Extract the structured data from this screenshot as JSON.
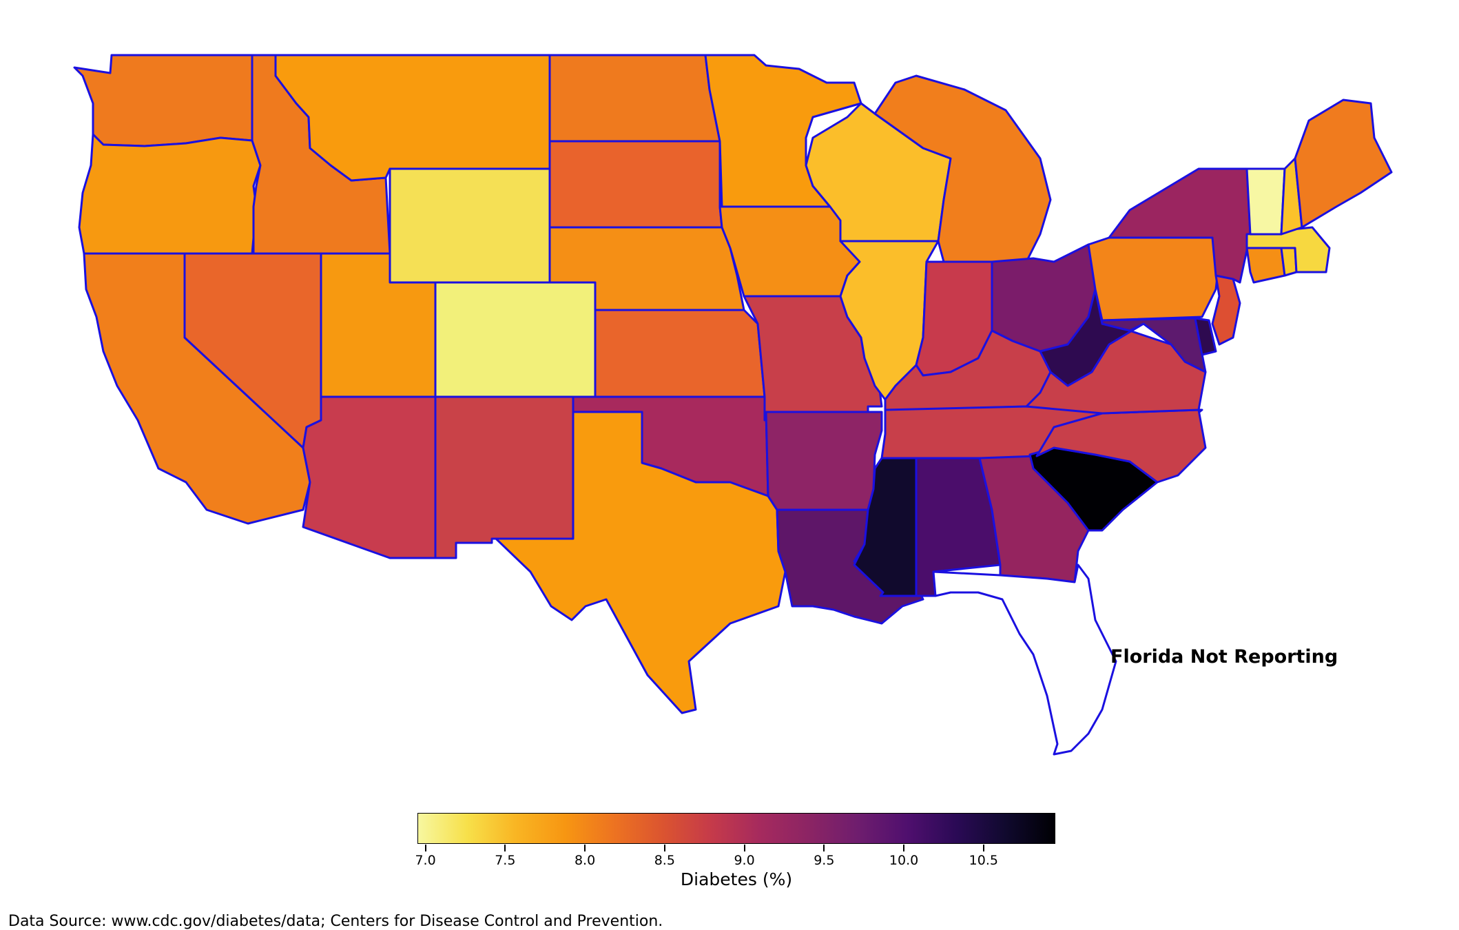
{
  "chart_data": {
    "type": "choropleth",
    "variable": "Diabetes (%)",
    "colormap": "plasma/inferno-like (light yellow low, black high)",
    "colorbar": {
      "label": "Diabetes (%)",
      "range": [
        6.95,
        10.95
      ],
      "ticks": [
        "7.0",
        "7.5",
        "8.0",
        "8.5",
        "9.0",
        "9.5",
        "10.0",
        "10.5"
      ],
      "stops": [
        "#f7f7a0",
        "#f7e04a",
        "#f9b523",
        "#f79612",
        "#ed7321",
        "#db5430",
        "#c53a4a",
        "#a52a5e",
        "#8b2464",
        "#6e1d6e",
        "#4f0f6e",
        "#2a0a55",
        "#10092e",
        "#000004"
      ]
    },
    "states": [
      {
        "name": "Washington",
        "value": 8.3,
        "color": "#ef7a1e"
      },
      {
        "name": "Oregon",
        "value": 8.0,
        "color": "#f79910"
      },
      {
        "name": "California",
        "value": 8.2,
        "color": "#f17f1b"
      },
      {
        "name": "Idaho",
        "value": 8.3,
        "color": "#ef7a1e"
      },
      {
        "name": "Nevada",
        "value": 8.5,
        "color": "#e9662a"
      },
      {
        "name": "Montana",
        "value": 7.9,
        "color": "#f99b0d"
      },
      {
        "name": "Wyoming",
        "value": 7.3,
        "color": "#f5e055"
      },
      {
        "name": "Utah",
        "value": 8.0,
        "color": "#f79910"
      },
      {
        "name": "Colorado",
        "value": 7.0,
        "color": "#f2f07a"
      },
      {
        "name": "Arizona",
        "value": 9.0,
        "color": "#c83c4e"
      },
      {
        "name": "New Mexico",
        "value": 8.9,
        "color": "#c94248"
      },
      {
        "name": "North Dakota",
        "value": 8.3,
        "color": "#ef7a1e"
      },
      {
        "name": "South Dakota",
        "value": 8.5,
        "color": "#e9632c"
      },
      {
        "name": "Nebraska",
        "value": 8.1,
        "color": "#f58f15"
      },
      {
        "name": "Kansas",
        "value": 8.5,
        "color": "#e9652b"
      },
      {
        "name": "Oklahoma",
        "value": 9.2,
        "color": "#a8295d"
      },
      {
        "name": "Texas",
        "value": 7.9,
        "color": "#f99b0d"
      },
      {
        "name": "Minnesota",
        "value": 7.9,
        "color": "#f99b0d"
      },
      {
        "name": "Iowa",
        "value": 8.1,
        "color": "#f58f15"
      },
      {
        "name": "Missouri",
        "value": 9.0,
        "color": "#c83f4a"
      },
      {
        "name": "Arkansas",
        "value": 9.4,
        "color": "#8e2466"
      },
      {
        "name": "Louisiana",
        "value": 9.8,
        "color": "#5e1668"
      },
      {
        "name": "Wisconsin",
        "value": 7.6,
        "color": "#fbbe2a"
      },
      {
        "name": "Illinois",
        "value": 7.6,
        "color": "#fbbe2a"
      },
      {
        "name": "Michigan",
        "value": 8.2,
        "color": "#f17e1c"
      },
      {
        "name": "Indiana",
        "value": 9.0,
        "color": "#c83a4c"
      },
      {
        "name": "Ohio",
        "value": 9.5,
        "color": "#7b1c6a"
      },
      {
        "name": "Kentucky",
        "value": 9.0,
        "color": "#c83f4a"
      },
      {
        "name": "Tennessee",
        "value": 9.0,
        "color": "#c83f4a"
      },
      {
        "name": "Mississippi",
        "value": 10.6,
        "color": "#110a2d"
      },
      {
        "name": "Alabama",
        "value": 10.0,
        "color": "#4b0d6b"
      },
      {
        "name": "Georgia",
        "value": 9.3,
        "color": "#95245f"
      },
      {
        "name": "South Carolina",
        "value": 10.9,
        "color": "#000004"
      },
      {
        "name": "North Carolina",
        "value": 9.0,
        "color": "#c83f4a"
      },
      {
        "name": "Virginia",
        "value": 9.0,
        "color": "#c83f4a"
      },
      {
        "name": "West Virginia",
        "value": 10.4,
        "color": "#2e0a50"
      },
      {
        "name": "Maryland",
        "value": 9.7,
        "color": "#5d1a6e"
      },
      {
        "name": "Delaware",
        "value": 10.4,
        "color": "#2e0a50"
      },
      {
        "name": "Pennsylvania",
        "value": 8.2,
        "color": "#f38519"
      },
      {
        "name": "New Jersey",
        "value": 8.7,
        "color": "#dd4f32"
      },
      {
        "name": "New York",
        "value": 9.3,
        "color": "#9b2560"
      },
      {
        "name": "Connecticut",
        "value": 8.1,
        "color": "#f58f15"
      },
      {
        "name": "Rhode Island",
        "value": 7.7,
        "color": "#f9c728"
      },
      {
        "name": "Massachusetts",
        "value": 7.4,
        "color": "#f7d840"
      },
      {
        "name": "Vermont",
        "value": 7.0,
        "color": "#f7f7a3"
      },
      {
        "name": "New Hampshire",
        "value": 7.7,
        "color": "#fbc22a"
      },
      {
        "name": "Maine",
        "value": 8.3,
        "color": "#f07b1e"
      },
      {
        "name": "Florida",
        "value": null,
        "color": "#ffffff"
      }
    ],
    "annotations": [
      "Florida Not Reporting"
    ]
  },
  "annotation_text": "Florida Not Reporting",
  "source_text": "Data Source: www.cdc.gov/diabetes/data; Centers for Disease Control and Prevention.",
  "colorbar_label": "Diabetes (%)",
  "ticks": [
    "7.0",
    "7.5",
    "8.0",
    "8.5",
    "9.0",
    "9.5",
    "10.0",
    "10.5"
  ],
  "colors": {
    "border": "#1a10e0",
    "background": "#ffffff"
  }
}
